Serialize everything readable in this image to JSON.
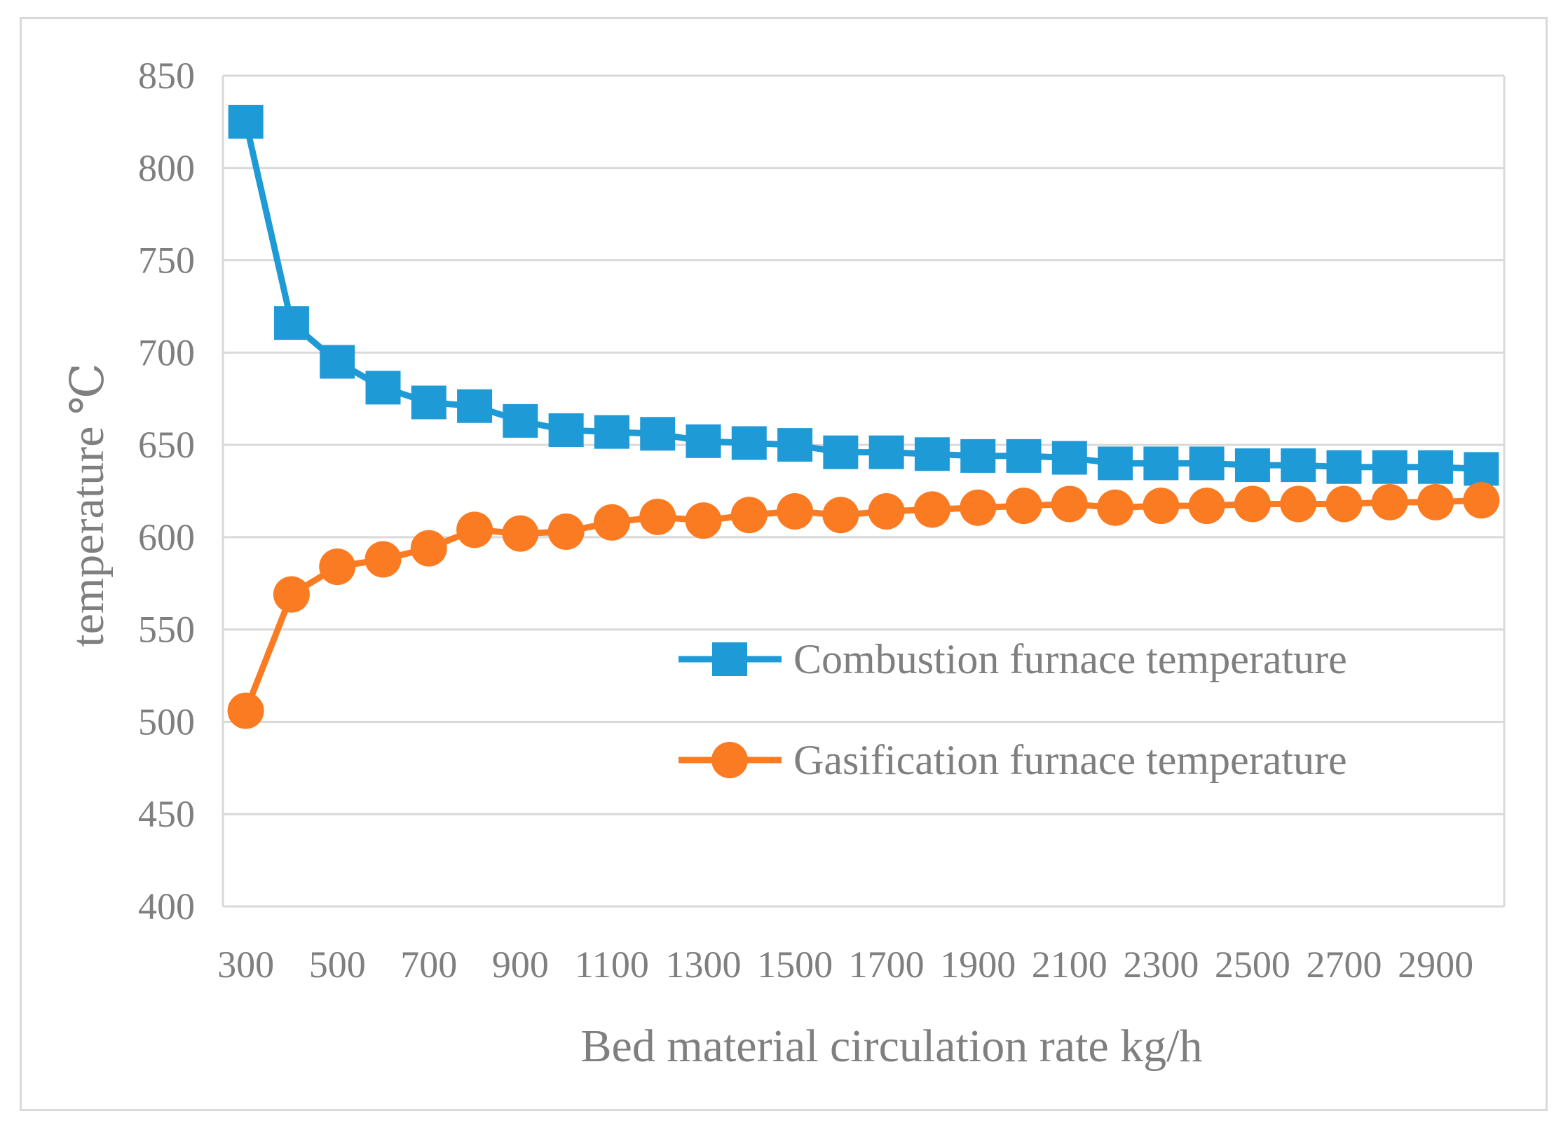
{
  "chart_data": {
    "type": "line",
    "xlabel": "Bed material circulation rate  kg/h",
    "ylabel": "temperature  ℃",
    "ylim": [
      400,
      850
    ],
    "yticks": [
      "400",
      "450",
      "500",
      "550",
      "600",
      "650",
      "700",
      "750",
      "800",
      "850"
    ],
    "xticks": [
      "300",
      "500",
      "700",
      "900",
      "1100",
      "1300",
      "1500",
      "1700",
      "1900",
      "2100",
      "2300",
      "2500",
      "2700",
      "2900"
    ],
    "x": [
      300,
      400,
      500,
      600,
      700,
      800,
      900,
      1000,
      1100,
      1200,
      1300,
      1400,
      1500,
      1600,
      1700,
      1800,
      1900,
      2000,
      2100,
      2200,
      2300,
      2400,
      2500,
      2600,
      2700,
      2800,
      2900,
      3000
    ],
    "grid": true,
    "legend_position": "center-right",
    "series": [
      {
        "name": "Combustion furnace temperature",
        "color": "#1e9ad6",
        "marker": "square",
        "values": [
          825,
          716,
          695,
          681,
          673,
          671,
          663,
          658,
          657,
          656,
          652,
          651,
          650,
          646,
          646,
          645,
          644,
          644,
          643,
          640,
          640,
          640,
          639,
          639,
          638,
          638,
          638,
          637
        ]
      },
      {
        "name": "Gasification furnace temperature",
        "color": "#fa7b22",
        "marker": "circle",
        "values": [
          506,
          569,
          584,
          588,
          594,
          604,
          602,
          603,
          608,
          611,
          609,
          612,
          614,
          612,
          614,
          615,
          616,
          617,
          618,
          616,
          617,
          617,
          618,
          618,
          618,
          619,
          619,
          620
        ]
      }
    ]
  }
}
